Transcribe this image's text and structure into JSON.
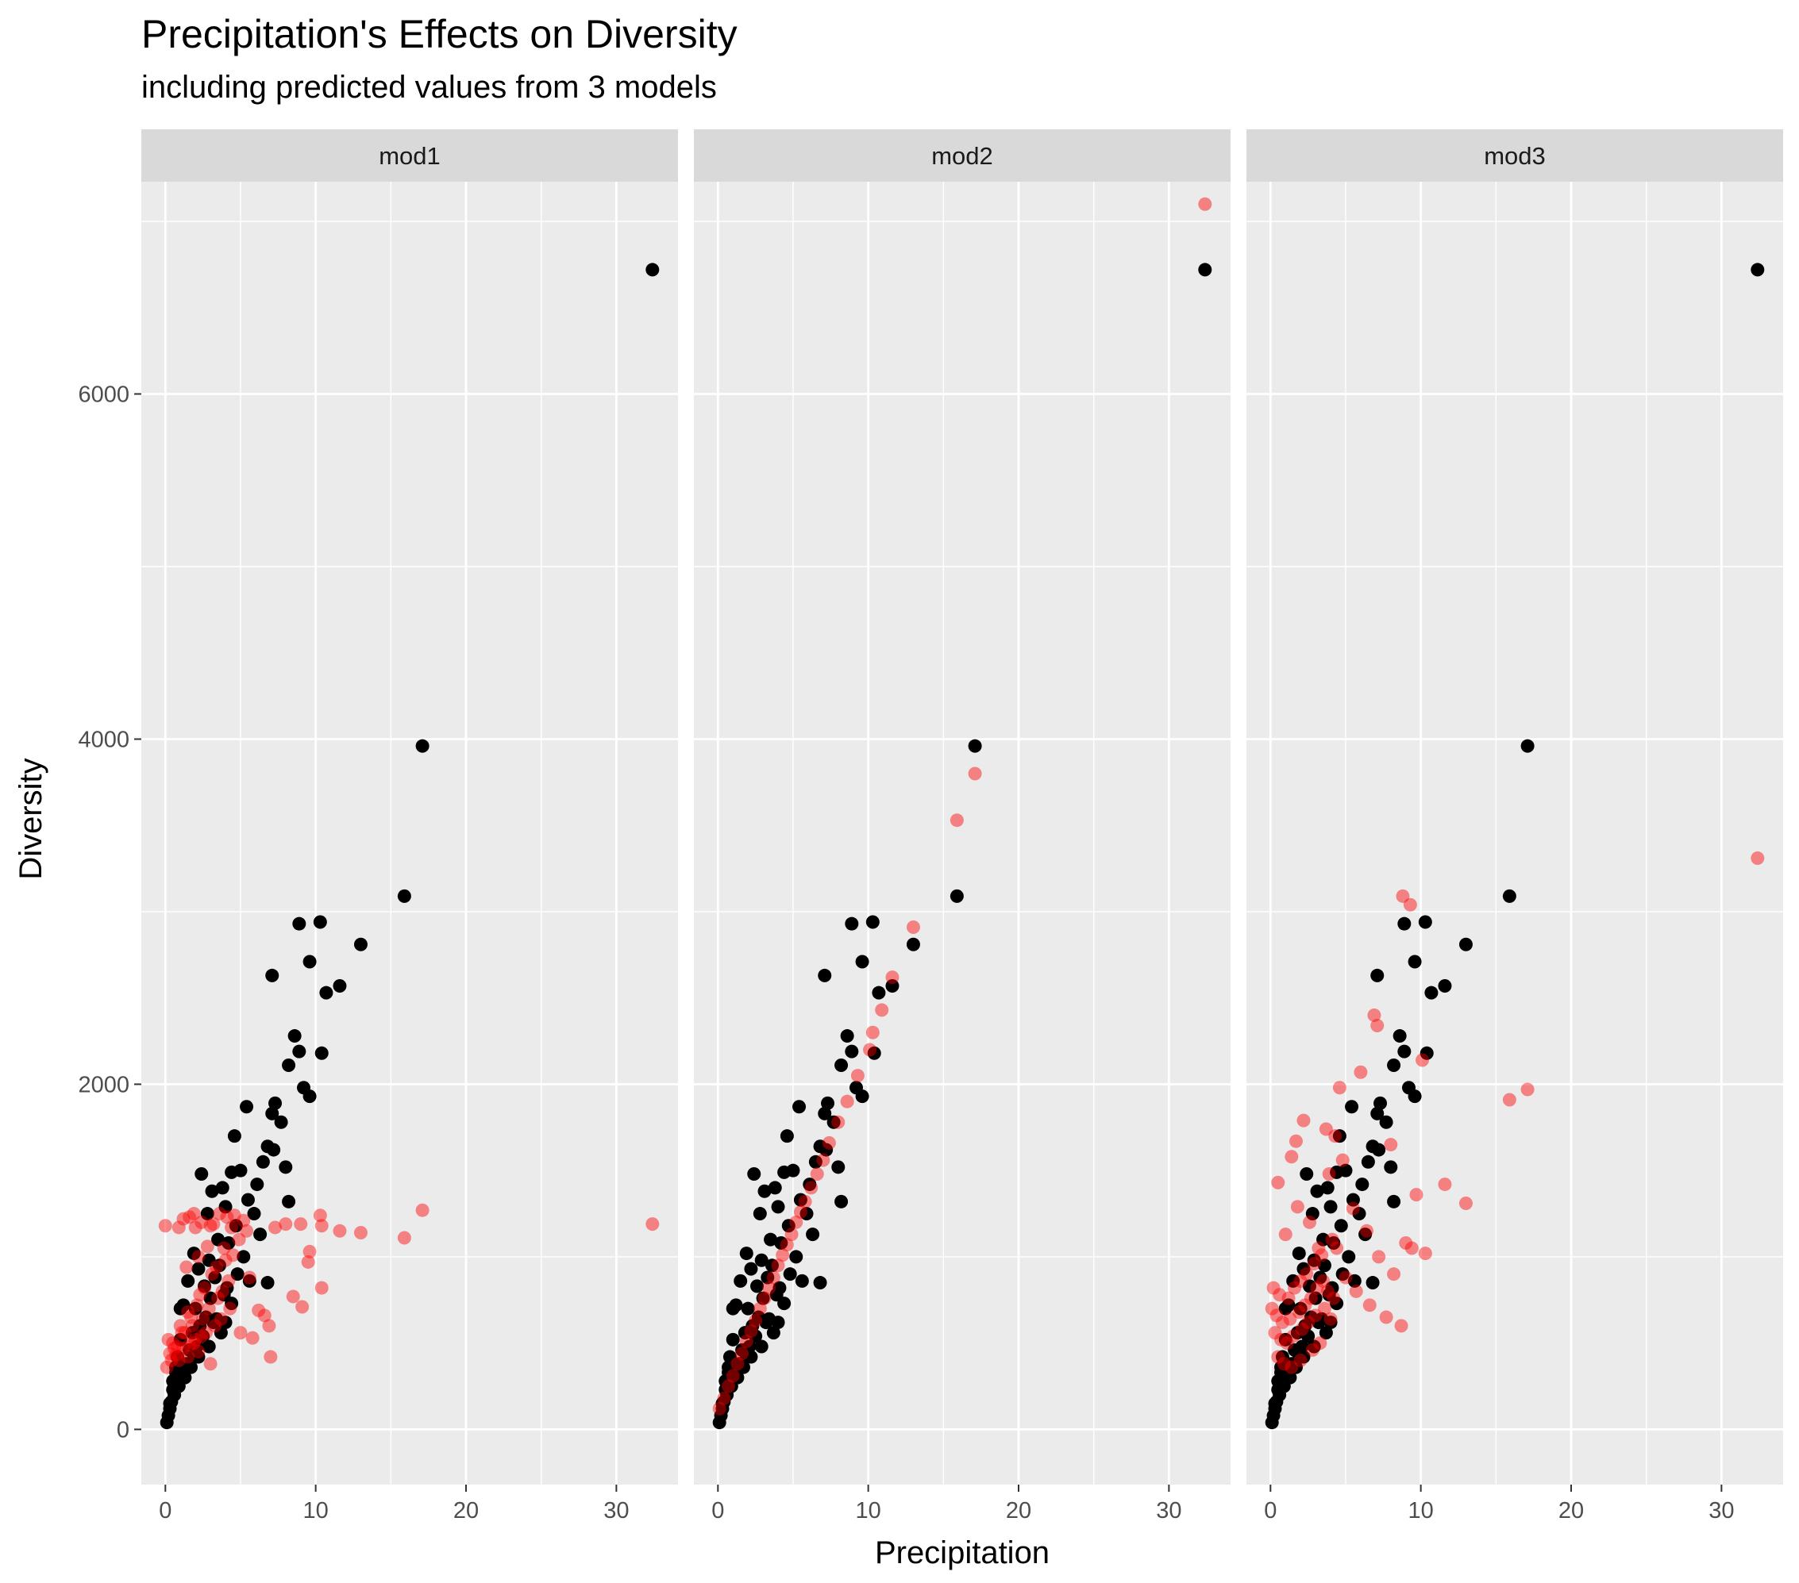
{
  "chart_data": {
    "type": "scatter",
    "title": "Precipitation's Effects on Diversity",
    "subtitle": "including predicted values from 3 models",
    "xlabel": "Precipitation",
    "ylabel": "Diversity",
    "xlim": [
      -1.6,
      34.1
    ],
    "ylim": [
      -320,
      7230
    ],
    "x_ticks": [
      0,
      10,
      20,
      30
    ],
    "y_ticks": [
      0,
      2000,
      4000,
      6000
    ],
    "grid": true,
    "legend": "none",
    "facet_labels": [
      "mod1",
      "mod2",
      "mod3"
    ],
    "colors": {
      "observed": "#000000",
      "predicted": "#ff0000",
      "panel_bg": "#ebebeb",
      "strip_bg": "#d9d9d9",
      "grid": "#ffffff"
    },
    "observed": {
      "x": [
        32.4,
        17.1,
        15.9,
        10.3,
        8.9,
        13.0,
        9.6,
        11.6,
        10.7,
        7.1,
        8.6,
        8.2,
        10.4,
        8.9,
        9.2,
        9.6,
        5.4,
        7.3,
        7.1,
        7.7,
        8.0,
        4.6,
        6.8,
        7.2,
        6.5,
        5.0,
        8.2,
        4.4,
        5.5,
        2.4,
        6.1,
        3.8,
        4.0,
        5.9,
        6.3,
        3.1,
        4.7,
        2.8,
        5.2,
        3.5,
        6.8,
        4.2,
        2.9,
        3.6,
        5.6,
        1.9,
        4.8,
        3.3,
        2.2,
        4.1,
        2.6,
        3.9,
        1.5,
        3.0,
        2.0,
        4.4,
        2.7,
        1.2,
        3.4,
        2.3,
        1.8,
        3.2,
        2.5,
        1.0,
        3.7,
        2.1,
        1.6,
        0.8,
        2.9,
        1.9,
        1.4,
        1.1,
        0.7,
        1.7,
        0.5,
        1.3,
        0.9,
        0.6,
        0.4,
        0.3,
        0.2,
        0.1,
        1.0,
        0.7,
        2.2,
        0.5,
        4.0,
        0.3
      ],
      "y": [
        6720,
        3960,
        3090,
        2940,
        2930,
        2810,
        2710,
        2570,
        2530,
        2630,
        2280,
        2110,
        2180,
        2190,
        1980,
        1930,
        1870,
        1890,
        1830,
        1780,
        1520,
        1700,
        1640,
        1620,
        1550,
        1500,
        1320,
        1490,
        1330,
        1480,
        1420,
        1400,
        1290,
        1250,
        1130,
        1380,
        1180,
        1250,
        1000,
        1100,
        850,
        1080,
        980,
        950,
        860,
        1020,
        900,
        880,
        930,
        820,
        830,
        780,
        860,
        760,
        700,
        730,
        650,
        720,
        640,
        600,
        560,
        620,
        540,
        520,
        560,
        480,
        460,
        420,
        480,
        430,
        380,
        340,
        330,
        360,
        280,
        300,
        250,
        200,
        160,
        120,
        80,
        40,
        700,
        360,
        420,
        230,
        620,
        150
      ]
    },
    "predicted_mod1": {
      "x": [
        32.4,
        17.1,
        15.9,
        10.3,
        10.4,
        11.6,
        13.0,
        9.6,
        9.0,
        9.5,
        8.5,
        10.4,
        8.0,
        9.1,
        7.3,
        6.6,
        6.9,
        7.0,
        5.6,
        5.0,
        5.8,
        6.2,
        4.4,
        3.0,
        2.0,
        0.0,
        0.9,
        1.2,
        1.6,
        1.9,
        2.4,
        3.2,
        3.6,
        4.1,
        4.6,
        5.2,
        2.8,
        2.2,
        1.4,
        3.9,
        4.9,
        5.4,
        0.2,
        0.5,
        1.0,
        1.5,
        2.1,
        2.6,
        3.1,
        3.4,
        4.0,
        4.5,
        2.3,
        1.7,
        1.1,
        0.3,
        0.6,
        0.8,
        1.3,
        1.8,
        2.5,
        2.9,
        3.5,
        3.8,
        4.2,
        2.7,
        2.0,
        1.6,
        0.4,
        0.1,
        0.7,
        1.2,
        1.9,
        2.4,
        3.3,
        3.7,
        4.3,
        2.2,
        1.5,
        0.9,
        3.0
      ],
      "y": [
        1190,
        1270,
        1110,
        1240,
        820,
        1150,
        1140,
        1030,
        1190,
        970,
        770,
        1180,
        1190,
        710,
        1170,
        660,
        600,
        420,
        880,
        560,
        530,
        690,
        1170,
        1180,
        1170,
        1180,
        1170,
        1220,
        1230,
        1250,
        1200,
        1190,
        1250,
        1230,
        1240,
        1210,
        1060,
        1000,
        940,
        1050,
        1100,
        1150,
        520,
        500,
        600,
        680,
        720,
        820,
        900,
        940,
        980,
        1010,
        780,
        650,
        560,
        440,
        470,
        480,
        560,
        600,
        640,
        700,
        760,
        800,
        860,
        560,
        520,
        490,
        400,
        360,
        430,
        470,
        500,
        540,
        600,
        640,
        700,
        450,
        420,
        400,
        380
      ]
    },
    "predicted_mod2": {
      "x": [
        32.4,
        17.1,
        15.9,
        13.0,
        11.6,
        10.9,
        10.3,
        10.1,
        9.3,
        8.6,
        8.0,
        7.4,
        7.0,
        6.6,
        6.2,
        5.8,
        5.5,
        5.2,
        4.9,
        4.6,
        4.3,
        4.0,
        3.7,
        3.4,
        3.1,
        2.8,
        2.5,
        2.2,
        1.9,
        1.6,
        1.3,
        1.0,
        0.7,
        0.4,
        0.1
      ],
      "y": [
        7100,
        3800,
        3530,
        2910,
        2620,
        2430,
        2300,
        2200,
        2050,
        1900,
        1780,
        1660,
        1560,
        1480,
        1400,
        1320,
        1260,
        1200,
        1130,
        1070,
        1010,
        950,
        880,
        820,
        760,
        700,
        630,
        570,
        510,
        440,
        380,
        310,
        250,
        180,
        120
      ]
    },
    "predicted_mod3": {
      "x": [
        32.4,
        17.1,
        15.9,
        13.0,
        11.6,
        10.3,
        10.1,
        8.8,
        9.3,
        9.7,
        6.9,
        7.1,
        8.0,
        9.0,
        9.4,
        6.0,
        4.6,
        4.3,
        3.7,
        1.7,
        2.2,
        1.4,
        0.5,
        1.0,
        1.8,
        2.6,
        3.2,
        3.9,
        4.8,
        5.5,
        6.4,
        7.2,
        8.2,
        0.2,
        0.6,
        1.2,
        1.6,
        2.0,
        2.4,
        2.9,
        3.4,
        4.1,
        4.4,
        5.0,
        5.7,
        6.6,
        7.7,
        8.7,
        0.1,
        0.4,
        0.8,
        1.3,
        1.9,
        2.3,
        2.7,
        3.1,
        3.5,
        3.8,
        4.2,
        0.3,
        0.7,
        1.1,
        1.5,
        2.1,
        2.5,
        3.0,
        3.6,
        4.0,
        0.5,
        0.9,
        1.4,
        2.0,
        2.8,
        3.3
      ],
      "y": [
        3310,
        1970,
        1910,
        1310,
        1420,
        1020,
        2140,
        3090,
        3040,
        1360,
        2400,
        2340,
        1650,
        1080,
        1050,
        2070,
        1980,
        1700,
        1740,
        1670,
        1790,
        1580,
        1430,
        1130,
        1290,
        1200,
        1050,
        1480,
        1560,
        1280,
        1150,
        1000,
        900,
        820,
        780,
        760,
        820,
        860,
        900,
        960,
        1010,
        1100,
        1050,
        880,
        800,
        720,
        650,
        600,
        700,
        660,
        620,
        640,
        680,
        720,
        760,
        820,
        860,
        800,
        760,
        560,
        520,
        500,
        540,
        580,
        620,
        660,
        700,
        640,
        420,
        380,
        360,
        400,
        460,
        500
      ]
    }
  }
}
